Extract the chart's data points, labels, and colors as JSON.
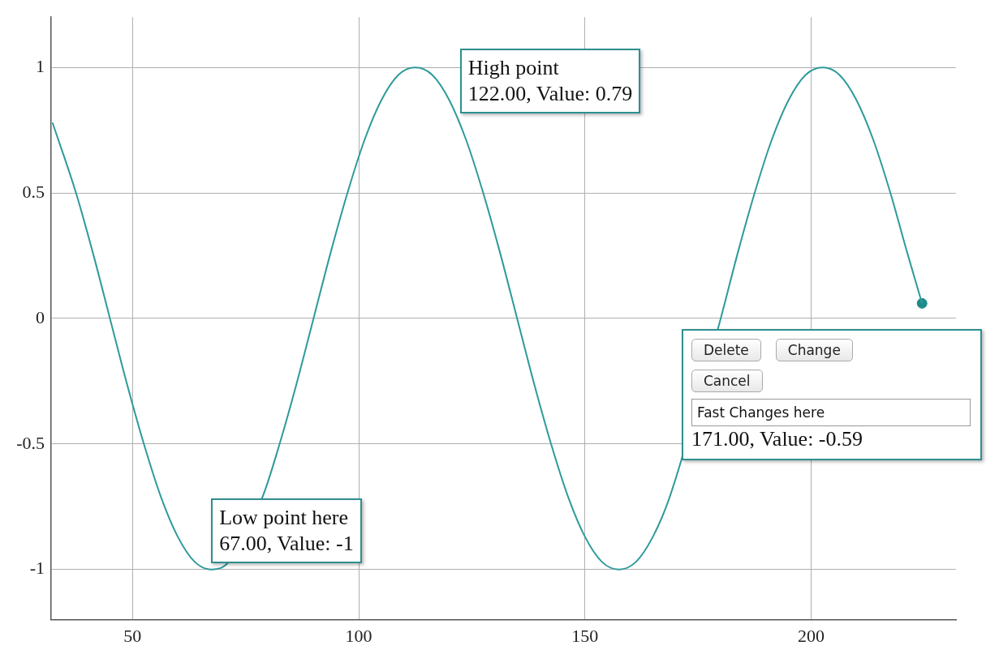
{
  "chart_data": {
    "type": "line",
    "xlim": [
      32,
      232
    ],
    "ylim": [
      -1.2,
      1.2
    ],
    "xticks": [
      50,
      100,
      150,
      200
    ],
    "yticks": [
      -1,
      -0.5,
      0,
      0.5,
      1
    ],
    "grid": true,
    "legend": false,
    "series": [
      {
        "color": "#2e9a9a",
        "marker": "none",
        "x": [
          32.3,
          37.5,
          41.25,
          45,
          48.75,
          52.5,
          56.25,
          60,
          63.75,
          67.5,
          71.25,
          78.75,
          82.5,
          86.25,
          90,
          93.75,
          97.5,
          101.25,
          105,
          108.75,
          112.5,
          116.25,
          120,
          123.75,
          127.5,
          131.25,
          135,
          138.75,
          142.5,
          146.25,
          150,
          153.75,
          157.5,
          161.25,
          165,
          168.75,
          180,
          183.75,
          187.5,
          191.25,
          195,
          198.75,
          202.5,
          206.25,
          210,
          213.75,
          217.5,
          221.25,
          224.5
        ],
        "values": [
          0.78,
          0.5,
          0.26,
          0,
          -0.26,
          -0.5,
          -0.71,
          -0.87,
          -0.97,
          -1,
          -0.97,
          -0.71,
          -0.5,
          -0.26,
          0,
          0.26,
          0.5,
          0.71,
          0.87,
          0.97,
          1,
          0.97,
          0.87,
          0.71,
          0.5,
          0.26,
          0,
          -0.26,
          -0.5,
          -0.71,
          -0.87,
          -0.97,
          -1,
          -0.97,
          -0.87,
          -0.71,
          0,
          0.26,
          0.5,
          0.71,
          0.87,
          0.97,
          1,
          0.97,
          0.87,
          0.71,
          0.5,
          0.26,
          0.06
        ]
      },
      {
        "type": "scatter",
        "color": "#1f8a8a",
        "marker": "circle",
        "x": [
          224.5
        ],
        "values": [
          0.06
        ]
      }
    ],
    "annotations": [
      {
        "text": "Low point here\n67.00, Value: -1",
        "x": 67,
        "y": -1
      },
      {
        "text": "High point\n122.00, Value: 0.79",
        "x": 122,
        "y": 0.79
      },
      {
        "text": "Fast Changes here\n171.00, Value: -0.59",
        "x": 171,
        "y": -0.59
      },
      "Delete",
      "Change",
      "Cancel"
    ]
  }
}
